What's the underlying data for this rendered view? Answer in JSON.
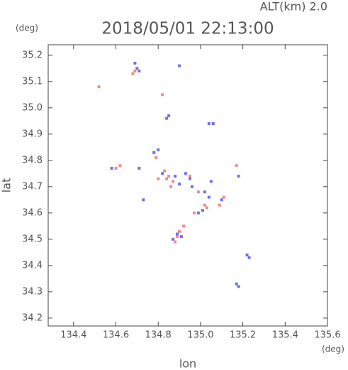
{
  "chart_data": {
    "type": "scatter",
    "title": "2018/05/01 22:13:00",
    "annotation": "ALT(km) 2.0",
    "xlabel": "lon",
    "ylabel": "lat",
    "xunit": "(deg)",
    "yunit": "(deg)",
    "xlim": [
      134.28,
      135.6
    ],
    "ylim": [
      34.17,
      35.24
    ],
    "xticks": [
      134.4,
      134.6,
      134.8,
      {
        "value": 135.0,
        "label": "135.0"
      },
      135.2,
      135.4,
      135.6
    ],
    "yticks": [
      34.2,
      34.3,
      34.4,
      34.5,
      34.6,
      34.7,
      34.8,
      34.9,
      {
        "value": 35.0,
        "label": "35.0"
      },
      35.1,
      35.2
    ],
    "series": [
      {
        "color": "#f08a8a",
        "x": [
          134.52,
          134.69,
          134.68,
          134.82,
          134.78,
          134.79,
          134.83,
          134.85,
          134.87,
          134.6,
          134.62,
          134.84,
          134.86,
          134.95,
          134.99,
          135.02,
          135.03,
          134.9,
          134.89,
          134.92,
          134.88,
          135.11,
          135.09,
          135.17,
          134.97,
          134.8
        ],
        "values": [
          35.08,
          35.14,
          35.13,
          35.05,
          34.83,
          34.81,
          34.76,
          34.74,
          34.72,
          34.77,
          34.78,
          34.73,
          34.7,
          34.74,
          34.68,
          34.63,
          34.62,
          34.53,
          34.51,
          34.55,
          34.49,
          34.66,
          34.63,
          34.78,
          34.6,
          34.73
        ]
      },
      {
        "color": "#7070ee",
        "x": [
          134.69,
          134.7,
          134.71,
          134.9,
          134.85,
          134.84,
          135.04,
          135.06,
          134.78,
          134.8,
          134.71,
          134.58,
          134.82,
          134.88,
          134.93,
          134.95,
          134.9,
          135.02,
          135.04,
          134.99,
          135.01,
          134.89,
          134.87,
          134.91,
          135.18,
          135.22,
          135.23,
          135.17,
          135.18,
          135.1,
          134.73,
          135.05,
          134.96
        ],
        "values": [
          35.17,
          35.15,
          35.14,
          35.16,
          34.97,
          34.96,
          34.94,
          34.94,
          34.83,
          34.84,
          34.77,
          34.77,
          34.75,
          34.74,
          34.75,
          34.73,
          34.71,
          34.68,
          34.66,
          34.6,
          34.61,
          34.52,
          34.5,
          34.51,
          34.74,
          34.44,
          34.43,
          34.33,
          34.32,
          34.65,
          34.65,
          34.72,
          34.7
        ]
      }
    ]
  }
}
